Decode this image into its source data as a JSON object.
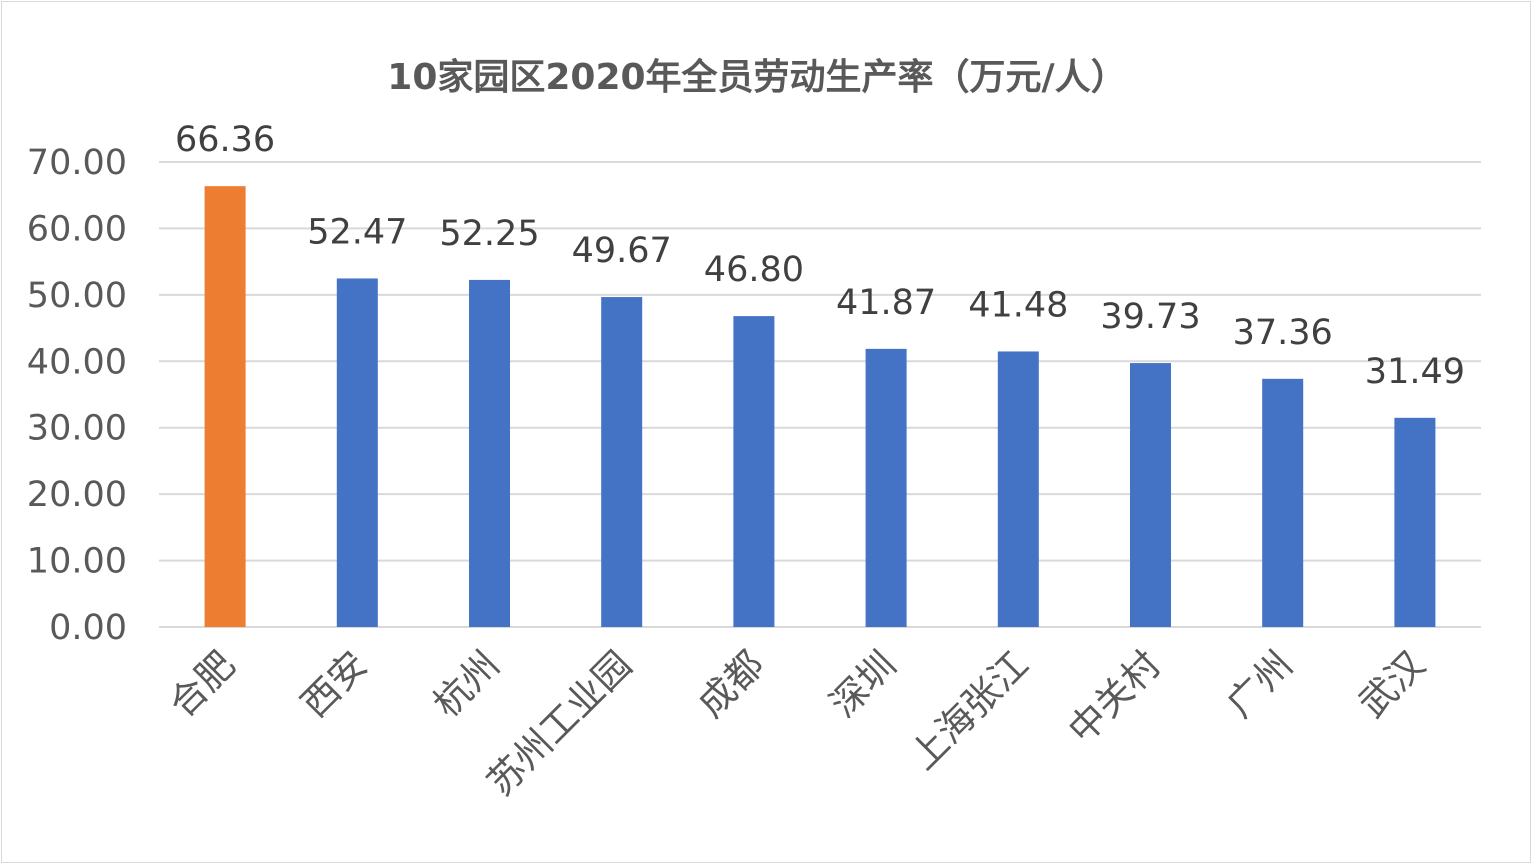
{
  "chart_data": {
    "type": "bar",
    "title": "10家园区2020年全员劳动生产率（万元/人）",
    "categories": [
      "合肥",
      "西安",
      "杭州",
      "苏州工业园",
      "成都",
      "深圳",
      "上海张江",
      "中关村",
      "广州",
      "武汉"
    ],
    "values": [
      66.36,
      52.47,
      52.25,
      49.67,
      46.8,
      41.87,
      41.48,
      39.73,
      37.36,
      31.49
    ],
    "data_labels": [
      "66.36",
      "52.47",
      "52.25",
      "49.67",
      "46.80",
      "41.87",
      "41.48",
      "39.73",
      "37.36",
      "31.49"
    ],
    "ylim": [
      0,
      70
    ],
    "yticks": [
      0,
      10,
      20,
      30,
      40,
      50,
      60,
      70
    ],
    "ytick_labels": [
      "0.00",
      "10.00",
      "20.00",
      "30.00",
      "40.00",
      "50.00",
      "60.00",
      "70.00"
    ],
    "xlabel": "",
    "ylabel": "",
    "grid": true,
    "legend": "none",
    "colors": {
      "default_bar": "#4472c4",
      "highlight_bar": "#ed7d31",
      "grid": "#d9d9d9"
    },
    "highlight_index": 0
  }
}
